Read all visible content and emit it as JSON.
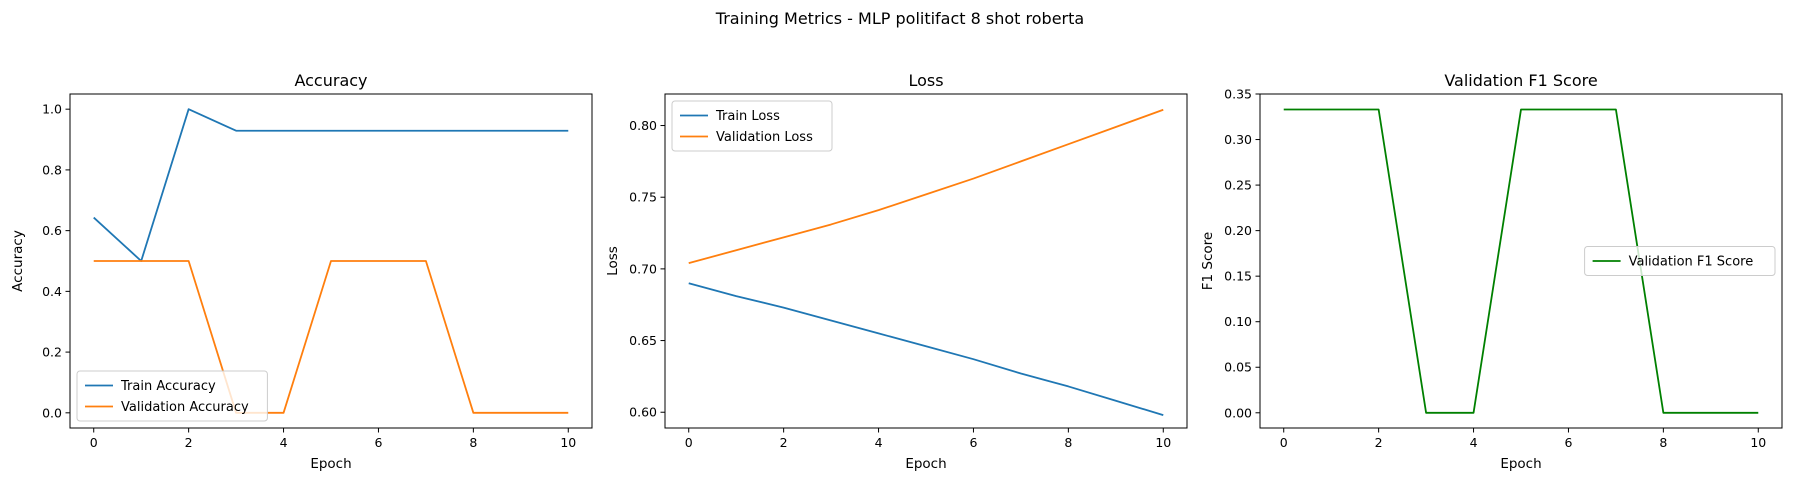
{
  "figure": {
    "suptitle": "Training Metrics - MLP politifact 8 shot roberta"
  },
  "chart_data": [
    {
      "type": "line",
      "title": "Accuracy",
      "xlabel": "Epoch",
      "ylabel": "Accuracy",
      "xlim": [
        -0.5,
        10.5
      ],
      "ylim": [
        -0.05,
        1.05
      ],
      "xticks": [
        0,
        2,
        4,
        6,
        8,
        10
      ],
      "yticks": [
        0.0,
        0.2,
        0.4,
        0.6,
        0.8,
        1.0
      ],
      "ytick_decimals": 1,
      "grid": false,
      "legend": "lower-left",
      "x": [
        0,
        1,
        2,
        3,
        4,
        5,
        6,
        7,
        8,
        9,
        10
      ],
      "series": [
        {
          "name": "Train Accuracy",
          "color": "#1f77b4",
          "values": [
            0.643,
            0.5,
            1.0,
            0.929,
            0.929,
            0.929,
            0.929,
            0.929,
            0.929,
            0.929,
            0.929
          ]
        },
        {
          "name": "Validation Accuracy",
          "color": "#ff7f0e",
          "values": [
            0.5,
            0.5,
            0.5,
            0.0,
            0.0,
            0.5,
            0.5,
            0.5,
            0.0,
            0.0,
            0.0
          ]
        }
      ]
    },
    {
      "type": "line",
      "title": "Loss",
      "xlabel": "Epoch",
      "ylabel": "Loss",
      "xlim": [
        -0.5,
        10.5
      ],
      "ylim": [
        0.589,
        0.822
      ],
      "xticks": [
        0,
        2,
        4,
        6,
        8,
        10
      ],
      "yticks": [
        0.6,
        0.65,
        0.7,
        0.75,
        0.8
      ],
      "ytick_decimals": 2,
      "grid": false,
      "legend": "upper-left",
      "x": [
        0,
        1,
        2,
        3,
        4,
        5,
        6,
        7,
        8,
        9,
        10
      ],
      "series": [
        {
          "name": "Train Loss",
          "color": "#1f77b4",
          "values": [
            0.69,
            0.681,
            0.673,
            0.664,
            0.655,
            0.646,
            0.637,
            0.627,
            0.618,
            0.608,
            0.598
          ]
        },
        {
          "name": "Validation Loss",
          "color": "#ff7f0e",
          "values": [
            0.704,
            0.713,
            0.722,
            0.731,
            0.741,
            0.752,
            0.763,
            0.775,
            0.787,
            0.799,
            0.811
          ]
        }
      ]
    },
    {
      "type": "line",
      "title": "Validation F1 Score",
      "xlabel": "Epoch",
      "ylabel": "F1 Score",
      "xlim": [
        -0.5,
        10.5
      ],
      "ylim": [
        -0.0167,
        0.35
      ],
      "xticks": [
        0,
        2,
        4,
        6,
        8,
        10
      ],
      "yticks": [
        0.0,
        0.05,
        0.1,
        0.15,
        0.2,
        0.25,
        0.3,
        0.35
      ],
      "ytick_decimals": 2,
      "grid": false,
      "legend": "center-right",
      "x": [
        0,
        1,
        2,
        3,
        4,
        5,
        6,
        7,
        8,
        9,
        10
      ],
      "series": [
        {
          "name": "Validation F1 Score",
          "color": "#008000",
          "values": [
            0.333,
            0.333,
            0.333,
            0.0,
            0.0,
            0.333,
            0.333,
            0.333,
            0.0,
            0.0,
            0.0
          ]
        }
      ]
    }
  ]
}
